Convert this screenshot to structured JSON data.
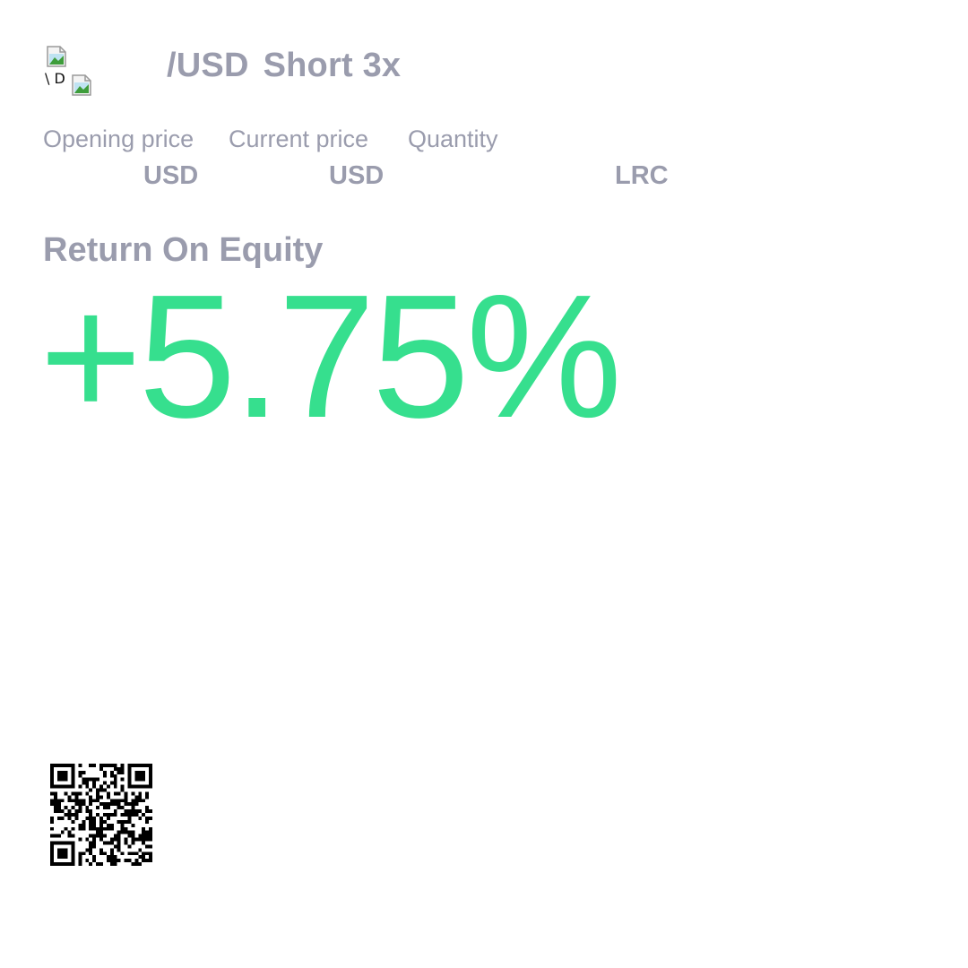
{
  "position": {
    "base_alt_text": "\\ D",
    "pair_quote": "/USD",
    "side_leverage": "Short 3x"
  },
  "stats": {
    "opening_price_label": "Opening price",
    "current_price_label": "Current price",
    "quantity_label": "Quantity",
    "opening_price_unit": "USD",
    "current_price_unit": "USD",
    "quantity_unit": "LRC"
  },
  "roe": {
    "label": "Return On Equity",
    "value": "+5.75%"
  },
  "colors": {
    "muted_text": "#9a9cad",
    "positive": "#36df8e"
  },
  "icons": {
    "base_token": "broken-image-icon",
    "quote_token": "broken-image-icon",
    "share_code": "qr-code-icon"
  }
}
